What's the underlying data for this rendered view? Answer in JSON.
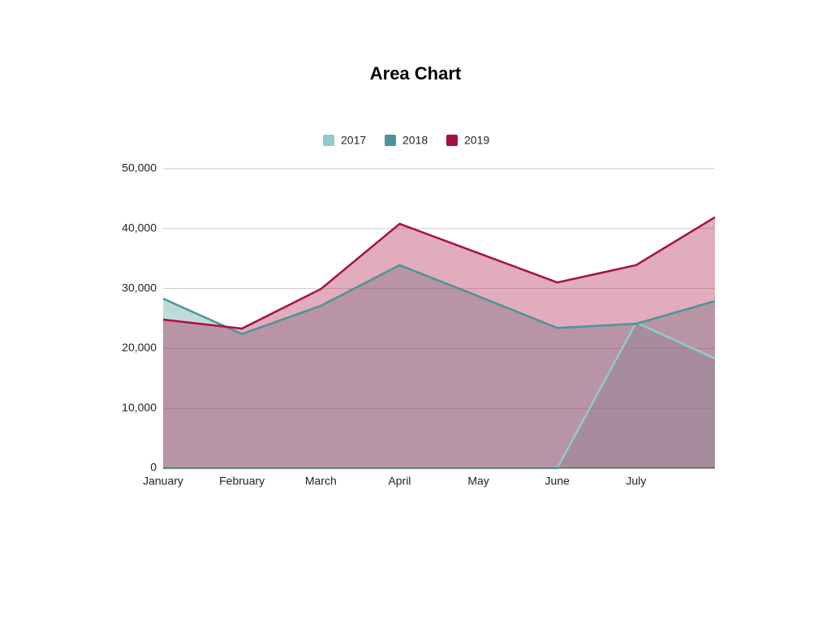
{
  "chart_data": {
    "type": "area",
    "title": "Area Chart",
    "categories": [
      "January",
      "February",
      "March",
      "April",
      "May",
      "June",
      "July",
      null
    ],
    "series": [
      {
        "name": "2017",
        "color": "#8ecbcc",
        "values": [
          0,
          0,
          0,
          0,
          0,
          0,
          24300,
          18300
        ]
      },
      {
        "name": "2018",
        "color": "#4a9599",
        "values": [
          28300,
          22400,
          27100,
          33900,
          28700,
          23400,
          24100,
          27900
        ]
      },
      {
        "name": "2019",
        "color": "#a8103e",
        "values": [
          24800,
          23300,
          29900,
          40800,
          35900,
          31000,
          33900,
          41900
        ]
      }
    ],
    "ylim": [
      0,
      50000
    ],
    "yticks": [
      0,
      {
        "value": 10000,
        "label": "10,000"
      },
      {
        "value": 20000,
        "label": "20,000"
      },
      {
        "value": 30000,
        "label": "30,000"
      },
      {
        "value": 40000,
        "label": "40,000"
      },
      {
        "value": 50000,
        "label": "50,000"
      }
    ],
    "grid": true,
    "legend": "top"
  }
}
